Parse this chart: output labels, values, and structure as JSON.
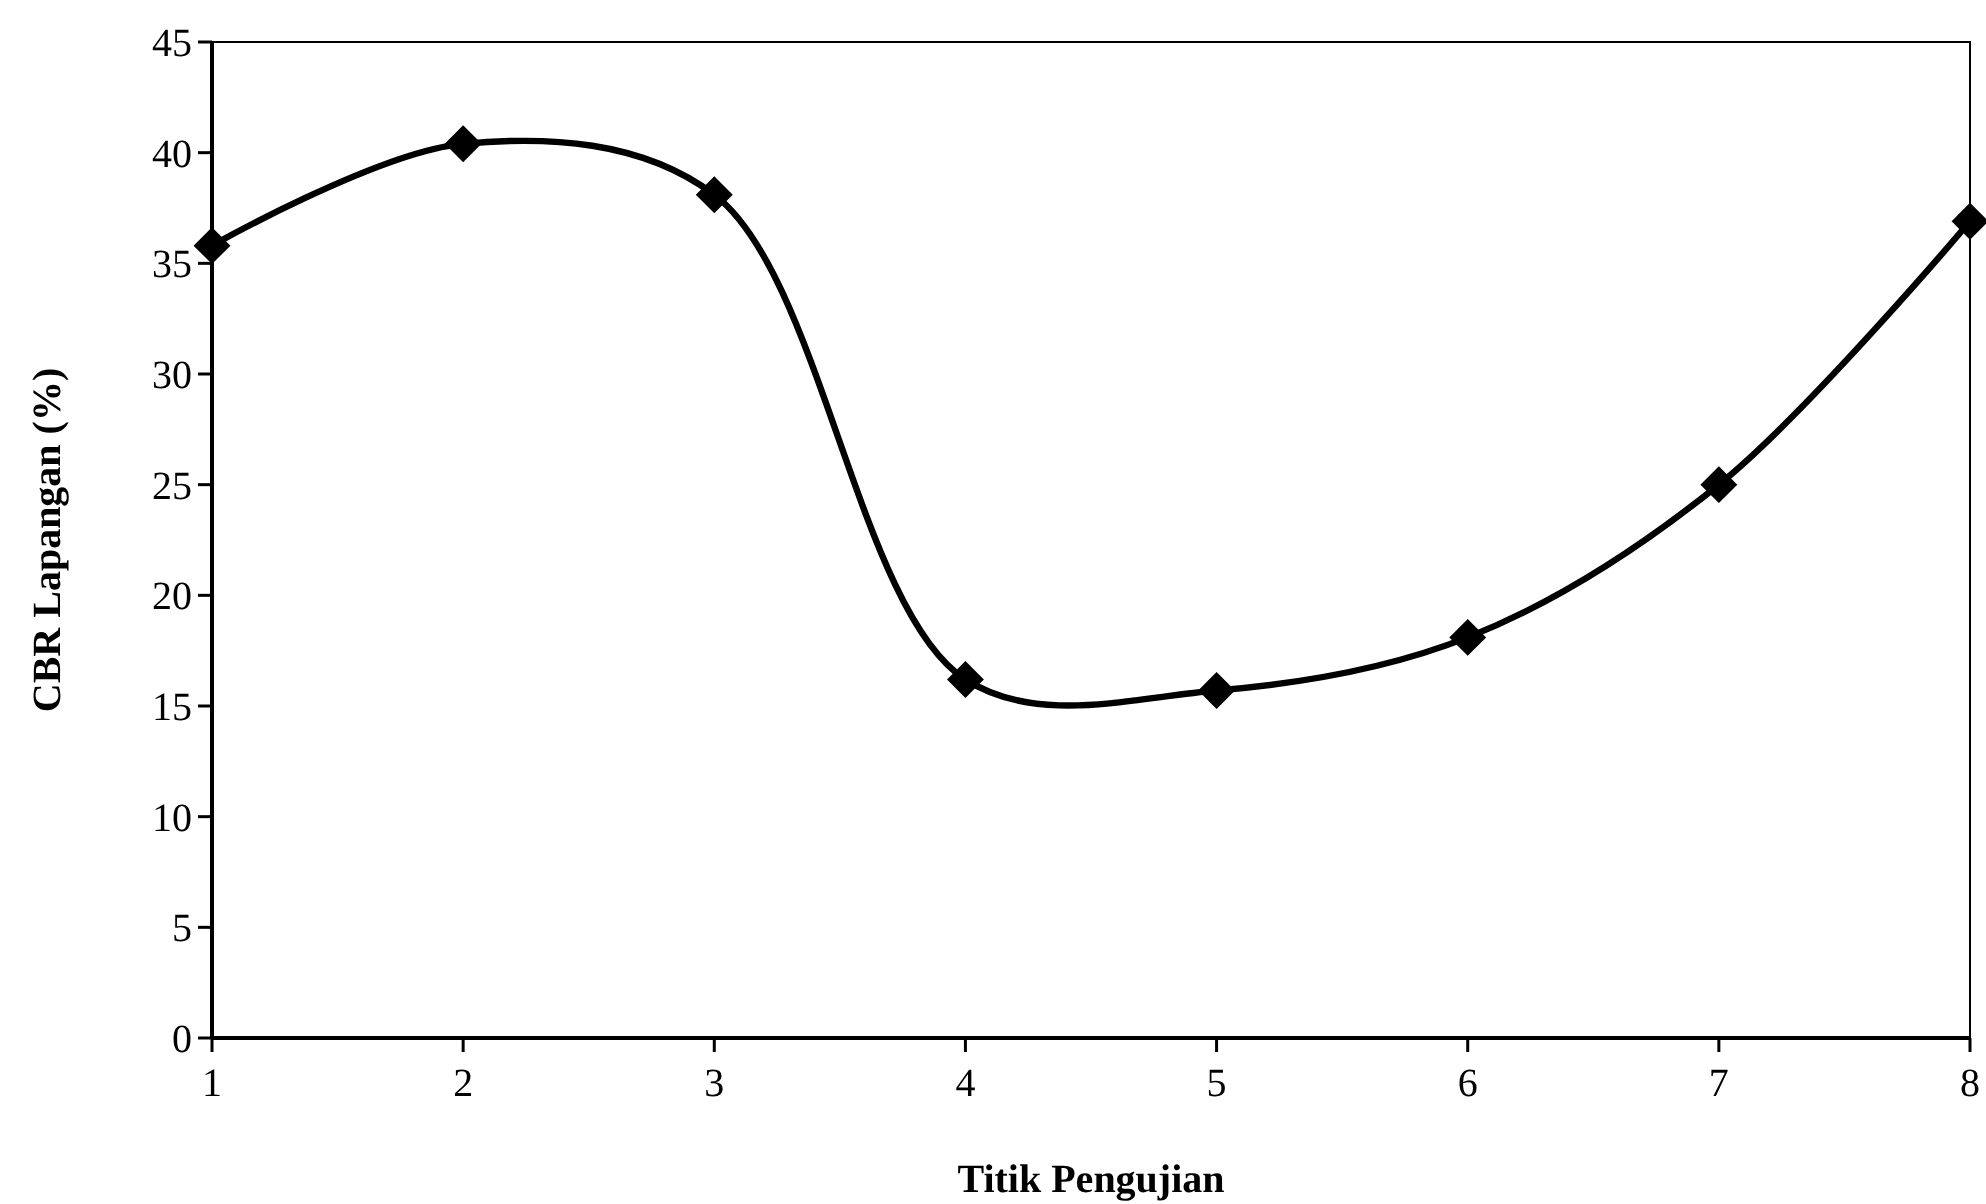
{
  "chart_data": {
    "type": "line",
    "xlabel": "Titik Pengujian",
    "ylabel": "CBR Lapangan (%)",
    "x": [
      1,
      2,
      3,
      4,
      5,
      6,
      7,
      8
    ],
    "series": [
      {
        "color": "#000000",
        "values": [
          35.8,
          40.4,
          38.1,
          16.2,
          15.7,
          18.1,
          25.0,
          36.9
        ]
      }
    ],
    "xlim": [
      1,
      8
    ],
    "xticks": [
      1,
      2,
      3,
      4,
      5,
      6,
      7,
      8
    ],
    "ylim": [
      0,
      45
    ],
    "yticks": [
      0,
      5,
      10,
      15,
      20,
      25,
      30,
      35,
      40,
      45
    ],
    "marker": "diamond",
    "line_style": "solid",
    "grid": false
  }
}
